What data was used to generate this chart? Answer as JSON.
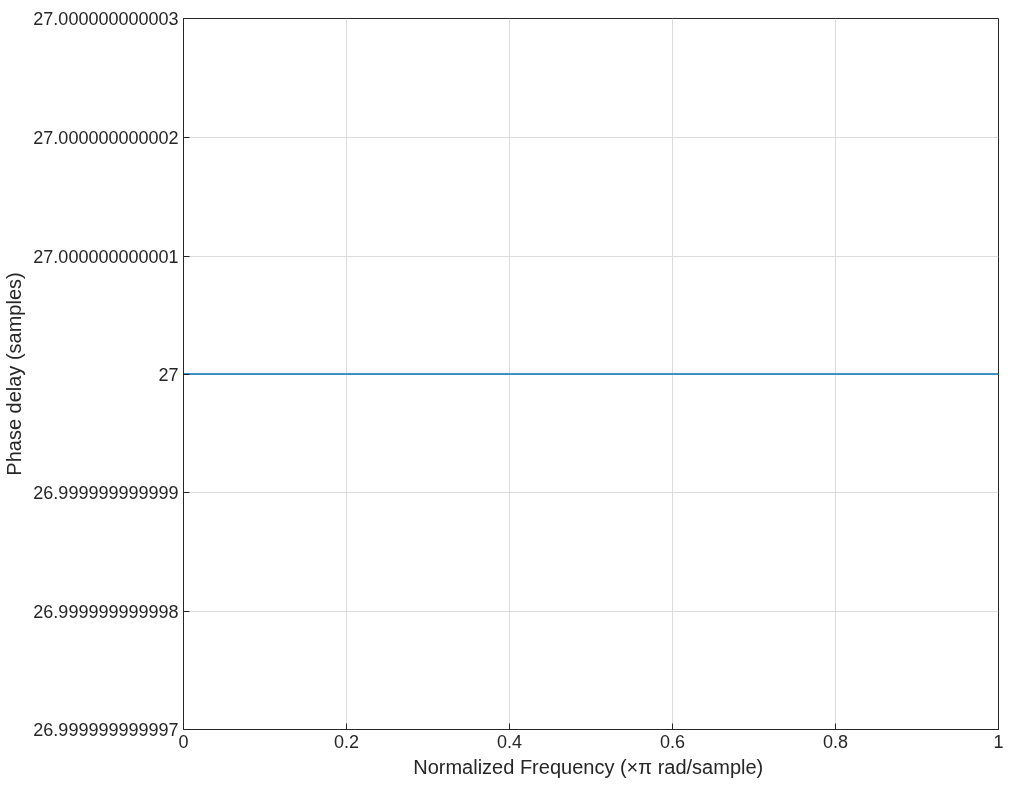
{
  "chart_data": {
    "type": "line",
    "xlabel": "Normalized Frequency  (×π rad/sample)",
    "ylabel": "Phase delay (samples)",
    "x": [
      0,
      1
    ],
    "series": [
      {
        "color": "#0072bd",
        "values": [
          27,
          27
        ]
      }
    ],
    "xlim": [
      0,
      1
    ],
    "xticks": [
      0,
      0.2,
      0.4,
      0.6,
      0.8,
      1
    ],
    "ylim": [
      26.999999999997,
      27.000000000003
    ],
    "yticks": [
      26.999999999997,
      26.999999999998,
      26.999999999999,
      27,
      27.000000000001,
      27.000000000002,
      27.000000000003
    ],
    "grid": true,
    "marker": "none",
    "line_style": "solid"
  }
}
